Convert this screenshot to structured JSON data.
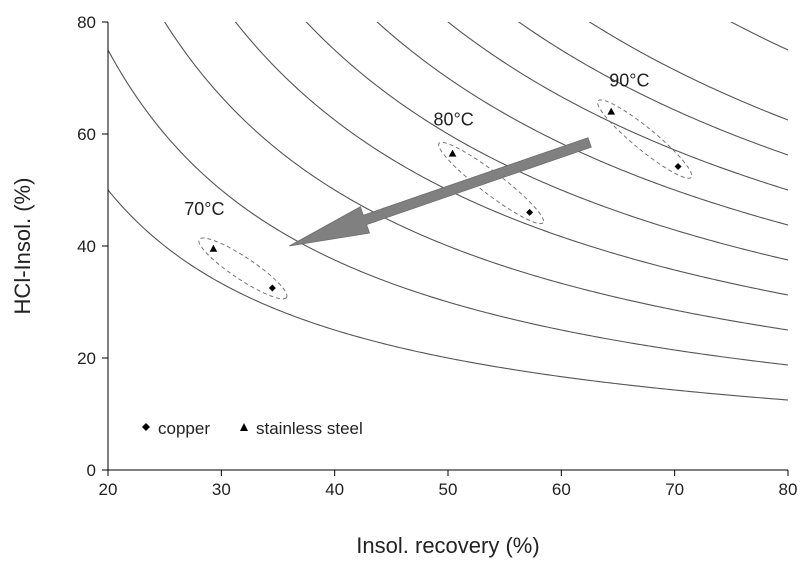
{
  "chart_data": {
    "type": "scatter",
    "xlabel": "Insol. recovery (%)",
    "ylabel": "HCl-Insol. (%)",
    "xlim": [
      20,
      80
    ],
    "ylim": [
      0,
      80
    ],
    "xticks": [
      20,
      30,
      40,
      50,
      60,
      70,
      80
    ],
    "yticks": [
      0,
      20,
      40,
      60,
      80
    ],
    "grid": false,
    "iso_curves": [
      {
        "k": 1000,
        "color": "#555555"
      },
      {
        "k": 1500,
        "color": "#555555"
      },
      {
        "k": 2000,
        "color": "#555555"
      },
      {
        "k": 2500,
        "color": "#555555"
      },
      {
        "k": 3000,
        "color": "#555555"
      },
      {
        "k": 3500,
        "color": "#555555"
      },
      {
        "k": 4000,
        "color": "#555555"
      },
      {
        "k": 4500,
        "color": "#555555"
      },
      {
        "k": 5000,
        "color": "#555555"
      },
      {
        "k": 6000,
        "color": "#555555"
      }
    ],
    "series": [
      {
        "name": "copper",
        "marker": "diamond",
        "color": "#000000",
        "points": [
          {
            "x": 34.5,
            "y": 32.5
          },
          {
            "x": 57.2,
            "y": 46
          },
          {
            "x": 70.3,
            "y": 54.2
          }
        ]
      },
      {
        "name": "stainless steel",
        "marker": "triangle",
        "color": "#000000",
        "points": [
          {
            "x": 29.3,
            "y": 39.5
          },
          {
            "x": 50.4,
            "y": 56.5
          },
          {
            "x": 64.4,
            "y": 64
          }
        ]
      }
    ],
    "groups": [
      {
        "label": "70°C",
        "label_x": 28.5,
        "label_y": 45.5,
        "ellipse_from": {
          "x": 29.3,
          "y": 39.5
        },
        "ellipse_to": {
          "x": 34.5,
          "y": 32.5
        }
      },
      {
        "label": "80°C",
        "label_x": 50.5,
        "label_y": 61.5,
        "ellipse_from": {
          "x": 50.4,
          "y": 56.5
        },
        "ellipse_to": {
          "x": 57.2,
          "y": 46
        }
      },
      {
        "label": "90°C",
        "label_x": 66,
        "label_y": 68.5,
        "ellipse_from": {
          "x": 64.4,
          "y": 64
        },
        "ellipse_to": {
          "x": 70.3,
          "y": 54.2
        }
      }
    ],
    "arrow": {
      "from": {
        "x": 62.5,
        "y": 58.5
      },
      "to": {
        "x": 36,
        "y": 40
      },
      "color": "#808080"
    },
    "legend": {
      "placement": "bottom-left"
    }
  }
}
